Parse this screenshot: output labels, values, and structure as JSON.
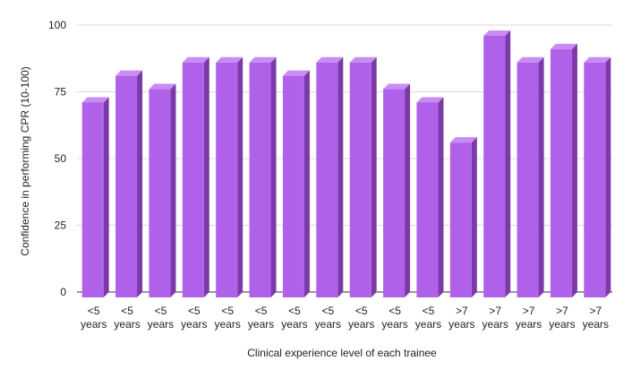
{
  "chart_data": {
    "type": "bar",
    "style": "3d-bar",
    "title": "",
    "xlabel": "Clinical experience level of each trainee",
    "ylabel": "Confidence in performing CPR (10-100)",
    "ylim": [
      0,
      100
    ],
    "yticks": [
      0,
      25,
      50,
      75,
      100
    ],
    "grid": true,
    "legend": "none",
    "categories": [
      [
        "<5",
        "years"
      ],
      [
        "<5",
        "years"
      ],
      [
        "<5",
        "years"
      ],
      [
        "<5",
        "years"
      ],
      [
        "<5",
        "years"
      ],
      [
        "<5",
        "years"
      ],
      [
        "<5",
        "years"
      ],
      [
        "<5",
        "years"
      ],
      [
        "<5",
        "years"
      ],
      [
        "<5",
        "years"
      ],
      [
        "<5",
        "years"
      ],
      [
        ">7",
        "years"
      ],
      [
        ">7",
        "years"
      ],
      [
        ">7",
        "years"
      ],
      [
        ">7",
        "years"
      ],
      [
        ">7",
        "years"
      ]
    ],
    "values": [
      73,
      83,
      78,
      88,
      88,
      88,
      83,
      88,
      88,
      78,
      73,
      58,
      98,
      88,
      93,
      88
    ],
    "colors": {
      "bar_front": "#b061e9",
      "bar_top": "#c88cf2",
      "bar_side": "#7b3aa8",
      "grid": "#d9d9d9",
      "axis": "#333333"
    }
  }
}
